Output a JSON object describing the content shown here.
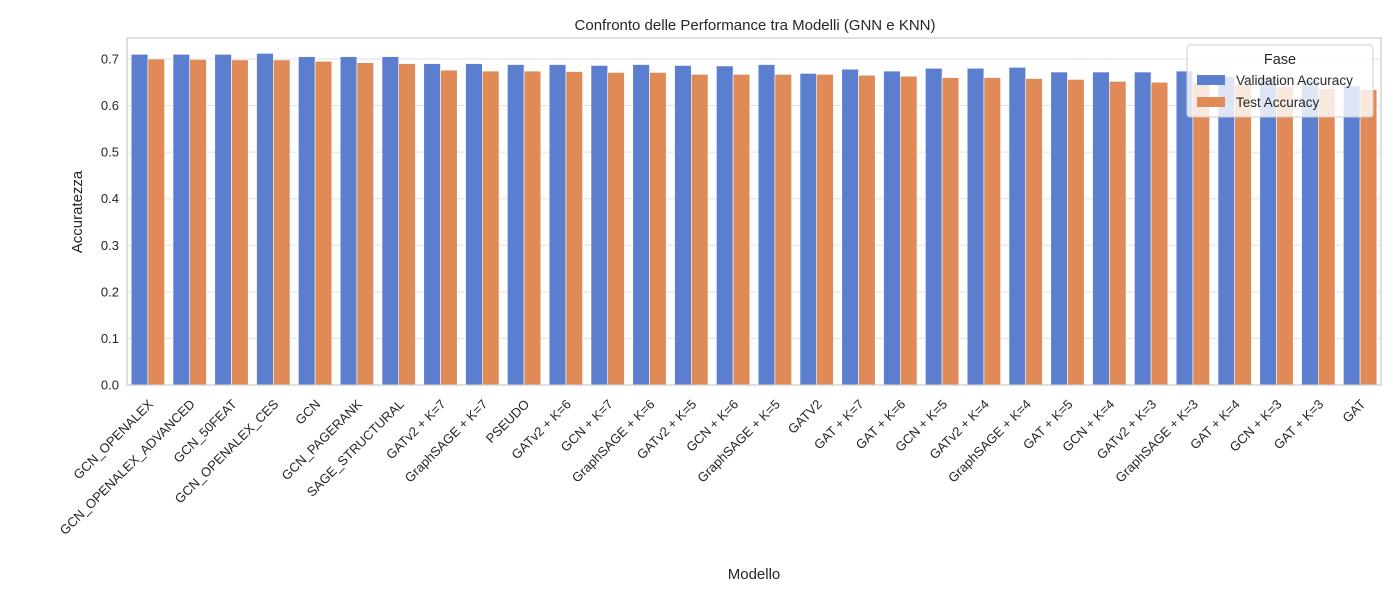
{
  "colors": {
    "validation": "#5b7fce",
    "test": "#e08a57",
    "grid": "#e0e0e0",
    "frame": "#cccccc"
  },
  "chart_data": {
    "type": "bar",
    "title": "Confronto delle Performance tra Modelli (GNN e KNN)",
    "xlabel": "Modello",
    "ylabel": "Accuratezza",
    "ylim": [
      0,
      0.745
    ],
    "yticks": [
      "0.0",
      "0.1",
      "0.2",
      "0.3",
      "0.4",
      "0.5",
      "0.6",
      "0.7"
    ],
    "grid": true,
    "legend": {
      "title": "Fase",
      "placement": "top-right"
    },
    "categories": [
      "GCN_OPENALEX",
      "GCN_OPENALEX_ADVANCED",
      "GCN_50FEAT",
      "GCN_OPENALEX_CES",
      "GCN",
      "GCN_PAGERANK",
      "SAGE_STRUCTURAL",
      "GATv2 + K=7",
      "GraphSAGE + K=7",
      "PSEUDO",
      "GATv2 + K=6",
      "GCN + K=7",
      "GraphSAGE + K=6",
      "GATv2 + K=5",
      "GCN + K=6",
      "GraphSAGE + K=5",
      "GATV2",
      "GAT + K=7",
      "GAT + K=6",
      "GCN + K=5",
      "GATv2 + K=4",
      "GraphSAGE + K=4",
      "GAT + K=5",
      "GCN + K=4",
      "GATv2 + K=3",
      "GraphSAGE + K=3",
      "GAT + K=4",
      "GCN + K=3",
      "GAT + K=3",
      "GAT"
    ],
    "series": [
      {
        "name": "Validation Accuracy",
        "values": [
          0.71,
          0.71,
          0.71,
          0.712,
          0.705,
          0.705,
          0.705,
          0.69,
          0.69,
          0.688,
          0.688,
          0.686,
          0.688,
          0.686,
          0.685,
          0.688,
          0.669,
          0.678,
          0.674,
          0.68,
          0.68,
          0.682,
          0.672,
          0.672,
          0.672,
          0.674,
          0.662,
          0.658,
          0.655,
          0.642
        ]
      },
      {
        "name": "Test Accuracy",
        "values": [
          0.7,
          0.699,
          0.698,
          0.698,
          0.695,
          0.692,
          0.69,
          0.676,
          0.674,
          0.674,
          0.673,
          0.671,
          0.671,
          0.667,
          0.667,
          0.667,
          0.667,
          0.665,
          0.663,
          0.66,
          0.66,
          0.658,
          0.656,
          0.652,
          0.65,
          0.648,
          0.645,
          0.64,
          0.636,
          0.634
        ]
      }
    ]
  }
}
